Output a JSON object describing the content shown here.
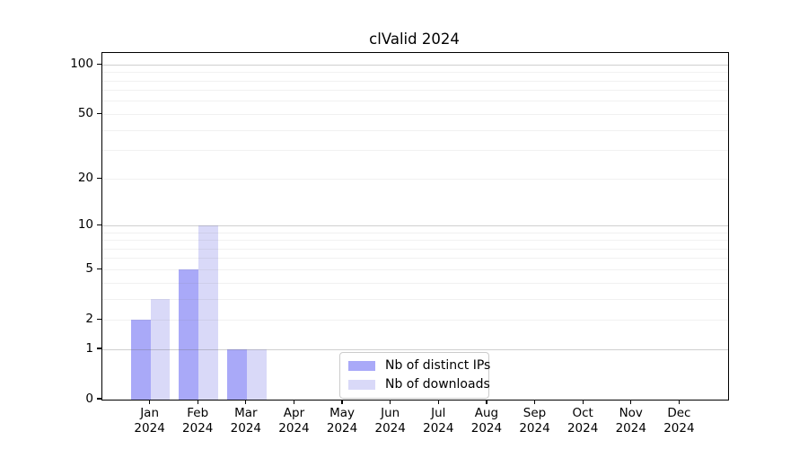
{
  "page": {
    "background": "#ffffff"
  },
  "chart_data": {
    "type": "bar",
    "title": "clValid 2024",
    "categories": [
      "Jan",
      "Feb",
      "Mar",
      "Apr",
      "May",
      "Jun",
      "Jul",
      "Aug",
      "Sep",
      "Oct",
      "Nov",
      "Dec"
    ],
    "x_sublabel": "2024",
    "series": [
      {
        "name": "Nb of distinct IPs",
        "color": "#a9a9f8",
        "values": [
          2,
          5,
          1,
          0,
          0,
          0,
          0,
          0,
          0,
          0,
          0,
          0
        ]
      },
      {
        "name": "Nb of downloads",
        "color": "#d9d9f8",
        "values": [
          3,
          10,
          1,
          0,
          0,
          0,
          0,
          0,
          0,
          0,
          0,
          0
        ]
      }
    ],
    "xlabel": "",
    "ylabel": "",
    "y_scale": "log1p",
    "y_max": 118,
    "y_ticks": [
      100,
      50,
      20,
      10,
      5,
      2,
      1,
      0
    ],
    "grid": {
      "enabled": true,
      "major_lines": [
        1,
        10,
        100
      ],
      "minor_lines": [
        2,
        3,
        4,
        5,
        6,
        7,
        8,
        9,
        20,
        30,
        40,
        50,
        60,
        70,
        80,
        90
      ]
    },
    "legend_position": "lower center",
    "colors": {
      "grid_major": "rgba(110,110,110,0.32)",
      "grid_minor": "rgba(120,120,120,0.10)",
      "spine": "#000000",
      "text": "#000000",
      "legend_border": "#cccccc",
      "legend_background": "#ffffff"
    }
  }
}
